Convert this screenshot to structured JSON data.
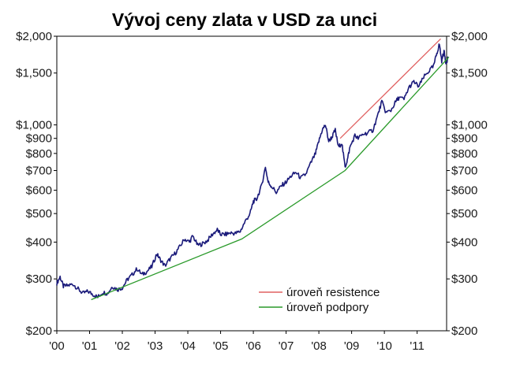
{
  "chart_data": {
    "type": "line",
    "title": "Vývoj ceny zlata v USD za unci",
    "xlabel": "",
    "ylabel": "",
    "yscale": "log",
    "ylim": [
      200,
      2000
    ],
    "xlim": [
      2000.0,
      2011.9
    ],
    "x_ticks": [
      "'00",
      "'01",
      "'02",
      "'03",
      "'04",
      "'05",
      "'06",
      "'07",
      "'08",
      "'09",
      "'10",
      "'11"
    ],
    "y_ticks": [
      {
        "value": 2000,
        "label": "$2,000"
      },
      {
        "value": 1500,
        "label": "$1,500"
      },
      {
        "value": 1000,
        "label": "$1,000"
      },
      {
        "value": 900,
        "label": "$900"
      },
      {
        "value": 800,
        "label": "$800"
      },
      {
        "value": 700,
        "label": "$700"
      },
      {
        "value": 600,
        "label": "$600"
      },
      {
        "value": 500,
        "label": "$500"
      },
      {
        "value": 400,
        "label": "$400"
      },
      {
        "value": 300,
        "label": "$300"
      },
      {
        "value": 200,
        "label": "$200"
      }
    ],
    "grid": false,
    "legend_position": "bottom-right",
    "series": [
      {
        "role": "price",
        "color": "#1a1a7a",
        "points": [
          [
            2000.0,
            290
          ],
          [
            2000.1,
            305
          ],
          [
            2000.2,
            283
          ],
          [
            2000.35,
            285
          ],
          [
            2000.5,
            288
          ],
          [
            2000.65,
            277
          ],
          [
            2000.8,
            268
          ],
          [
            2000.95,
            272
          ],
          [
            2001.1,
            266
          ],
          [
            2001.25,
            260
          ],
          [
            2001.4,
            270
          ],
          [
            2001.55,
            268
          ],
          [
            2001.7,
            283
          ],
          [
            2001.85,
            276
          ],
          [
            2002.0,
            280
          ],
          [
            2002.15,
            298
          ],
          [
            2002.3,
            310
          ],
          [
            2002.45,
            325
          ],
          [
            2002.6,
            310
          ],
          [
            2002.75,
            318
          ],
          [
            2002.9,
            330
          ],
          [
            2003.05,
            365
          ],
          [
            2003.15,
            350
          ],
          [
            2003.3,
            332
          ],
          [
            2003.45,
            350
          ],
          [
            2003.6,
            365
          ],
          [
            2003.75,
            385
          ],
          [
            2003.9,
            410
          ],
          [
            2004.05,
            400
          ],
          [
            2004.15,
            420
          ],
          [
            2004.3,
            390
          ],
          [
            2004.45,
            395
          ],
          [
            2004.6,
            405
          ],
          [
            2004.75,
            425
          ],
          [
            2004.9,
            440
          ],
          [
            2005.0,
            425
          ],
          [
            2005.15,
            425
          ],
          [
            2005.3,
            430
          ],
          [
            2005.45,
            428
          ],
          [
            2005.6,
            435
          ],
          [
            2005.75,
            470
          ],
          [
            2005.9,
            500
          ],
          [
            2006.0,
            550
          ],
          [
            2006.1,
            560
          ],
          [
            2006.25,
            620
          ],
          [
            2006.37,
            720
          ],
          [
            2006.45,
            640
          ],
          [
            2006.55,
            620
          ],
          [
            2006.7,
            590
          ],
          [
            2006.85,
            620
          ],
          [
            2007.0,
            640
          ],
          [
            2007.15,
            670
          ],
          [
            2007.3,
            690
          ],
          [
            2007.45,
            660
          ],
          [
            2007.6,
            680
          ],
          [
            2007.75,
            740
          ],
          [
            2007.9,
            800
          ],
          [
            2008.0,
            880
          ],
          [
            2008.1,
            960
          ],
          [
            2008.2,
            1000
          ],
          [
            2008.3,
            880
          ],
          [
            2008.4,
            910
          ],
          [
            2008.5,
            960
          ],
          [
            2008.6,
            840
          ],
          [
            2008.7,
            870
          ],
          [
            2008.8,
            720
          ],
          [
            2008.87,
            760
          ],
          [
            2008.95,
            840
          ],
          [
            2009.1,
            920
          ],
          [
            2009.2,
            900
          ],
          [
            2009.35,
            930
          ],
          [
            2009.5,
            940
          ],
          [
            2009.65,
            960
          ],
          [
            2009.8,
            1080
          ],
          [
            2009.92,
            1200
          ],
          [
            2010.05,
            1100
          ],
          [
            2010.2,
            1120
          ],
          [
            2010.35,
            1200
          ],
          [
            2010.45,
            1240
          ],
          [
            2010.6,
            1220
          ],
          [
            2010.75,
            1340
          ],
          [
            2010.9,
            1400
          ],
          [
            2011.05,
            1350
          ],
          [
            2011.2,
            1450
          ],
          [
            2011.35,
            1520
          ],
          [
            2011.5,
            1580
          ],
          [
            2011.6,
            1750
          ],
          [
            2011.68,
            1880
          ],
          [
            2011.75,
            1650
          ],
          [
            2011.82,
            1780
          ],
          [
            2011.88,
            1620
          ],
          [
            2011.95,
            1700
          ]
        ]
      },
      {
        "role": "resistance",
        "name": "úroveň resistence",
        "color": "#e06060",
        "points": [
          [
            2008.65,
            900
          ],
          [
            2011.72,
            1960
          ]
        ]
      },
      {
        "role": "support",
        "name": "úroveň podpory",
        "color": "#2a9a2a",
        "points": [
          [
            2001.05,
            255
          ],
          [
            2005.65,
            410
          ],
          [
            2008.8,
            700
          ],
          [
            2011.97,
            1700
          ]
        ]
      }
    ]
  }
}
